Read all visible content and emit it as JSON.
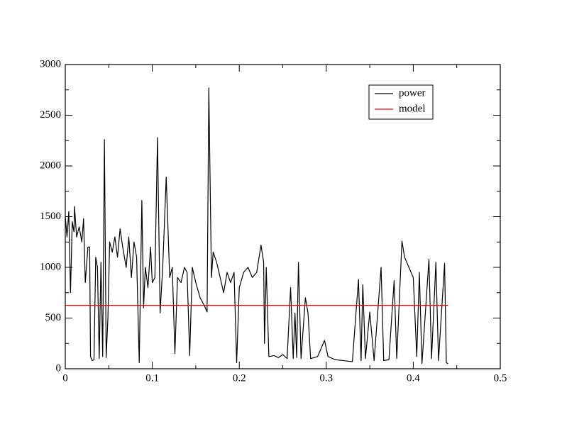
{
  "chart_data": {
    "type": "line",
    "xlim": [
      0,
      0.5
    ],
    "ylim": [
      0,
      3000
    ],
    "xticks": [
      0,
      0.1,
      0.2,
      0.3,
      0.4,
      0.5
    ],
    "yticks": [
      0,
      500,
      1000,
      1500,
      2000,
      2500,
      3000
    ],
    "legend": "top-right",
    "series": [
      {
        "name": "power",
        "color": "#000000",
        "x": [
          0,
          0.002,
          0.004,
          0.006,
          0.008,
          0.01,
          0.0106,
          0.013,
          0.016,
          0.019,
          0.021,
          0.023,
          0.026,
          0.028,
          0.029,
          0.031,
          0.033,
          0.035,
          0.037,
          0.039,
          0.041,
          0.043,
          0.045,
          0.047,
          0.049,
          0.051,
          0.054,
          0.057,
          0.06,
          0.063,
          0.066,
          0.07,
          0.073,
          0.076,
          0.079,
          0.082,
          0.085,
          0.088,
          0.09,
          0.092,
          0.095,
          0.098,
          0.1,
          0.103,
          0.106,
          0.109,
          0.112,
          0.116,
          0.12,
          0.123,
          0.126,
          0.129,
          0.133,
          0.137,
          0.14,
          0.143,
          0.146,
          0.15,
          0.155,
          0.16,
          0.163,
          0.165,
          0.168,
          0.17,
          0.174,
          0.178,
          0.182,
          0.186,
          0.19,
          0.194,
          0.197,
          0.2,
          0.205,
          0.21,
          0.215,
          0.22,
          0.225,
          0.228,
          0.229,
          0.231,
          0.234,
          0.24,
          0.245,
          0.25,
          0.255,
          0.259,
          0.262,
          0.264,
          0.266,
          0.268,
          0.271,
          0.276,
          0.279,
          0.282,
          0.29,
          0.298,
          0.302,
          0.31,
          0.32,
          0.33,
          0.337,
          0.34,
          0.342,
          0.345,
          0.35,
          0.355,
          0.363,
          0.366,
          0.372,
          0.378,
          0.381,
          0.387,
          0.39,
          0.395,
          0.4,
          0.404,
          0.407,
          0.41,
          0.418,
          0.421,
          0.426,
          0.429,
          0.436,
          0.438,
          0.44
        ],
        "values": [
          1500,
          1300,
          1550,
          750,
          1450,
          1350,
          1600,
          1300,
          1400,
          1250,
          1480,
          850,
          1200,
          1200,
          120,
          80,
          90,
          1100,
          1000,
          100,
          1050,
          120,
          2260,
          110,
          500,
          1250,
          1150,
          1300,
          1100,
          1380,
          1200,
          1000,
          1300,
          900,
          1250,
          1100,
          60,
          1660,
          600,
          1000,
          800,
          1200,
          850,
          900,
          2280,
          550,
          1000,
          1890,
          900,
          1000,
          150,
          900,
          850,
          1000,
          950,
          130,
          1000,
          850,
          700,
          620,
          560,
          2770,
          900,
          1150,
          1050,
          900,
          750,
          950,
          850,
          950,
          60,
          800,
          950,
          1000,
          900,
          950,
          1220,
          1050,
          250,
          1000,
          120,
          130,
          110,
          140,
          100,
          800,
          100,
          550,
          110,
          1050,
          100,
          700,
          550,
          100,
          120,
          280,
          120,
          90,
          80,
          70,
          880,
          80,
          830,
          100,
          560,
          80,
          1000,
          80,
          90,
          870,
          100,
          1260,
          1100,
          1000,
          900,
          120,
          950,
          50,
          1080,
          100,
          1050,
          80,
          1040,
          60,
          50
        ]
      },
      {
        "name": "model",
        "color": "#ff0000",
        "x": [
          0,
          0.44
        ],
        "values": [
          625,
          625
        ]
      }
    ]
  }
}
